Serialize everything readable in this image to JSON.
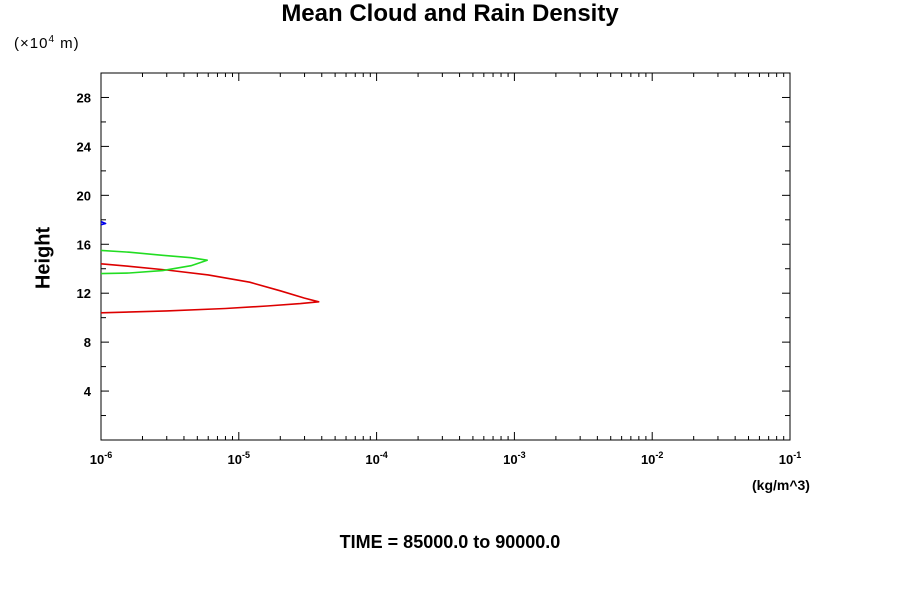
{
  "chart_data": {
    "type": "line",
    "title": "Mean Cloud and Rain Density",
    "ylabel": "Height",
    "y_unit_prefix": "(×10",
    "y_unit_exp": "4",
    "y_unit_suffix": " m)",
    "xlabel": "(kg/m^3)",
    "x_scale": "log",
    "xlim": [
      1e-06,
      0.1
    ],
    "ylim": [
      0,
      30
    ],
    "y_ticks": [
      4,
      8,
      12,
      16,
      20,
      24,
      28
    ],
    "x_ticks": [
      {
        "base": "10",
        "exp": "-6"
      },
      {
        "base": "10",
        "exp": "-5"
      },
      {
        "base": "10",
        "exp": "-4"
      },
      {
        "base": "10",
        "exp": "-3"
      },
      {
        "base": "10",
        "exp": "-2"
      },
      {
        "base": "10",
        "exp": "-1"
      }
    ],
    "grid": false,
    "series": [
      {
        "color": "#dd0000",
        "points": [
          [
            1e-06,
            10.4
          ],
          [
            3e-06,
            10.55
          ],
          [
            8e-06,
            10.75
          ],
          [
            1.6e-05,
            10.95
          ],
          [
            2.8e-05,
            11.15
          ],
          [
            3.8e-05,
            11.3
          ],
          [
            3e-05,
            11.6
          ],
          [
            2e-05,
            12.2
          ],
          [
            1.2e-05,
            12.9
          ],
          [
            6e-06,
            13.5
          ],
          [
            3e-06,
            13.9
          ],
          [
            1.6e-06,
            14.2
          ],
          [
            1e-06,
            14.4
          ]
        ]
      },
      {
        "color": "#22dd22",
        "points": [
          [
            1e-06,
            13.6
          ],
          [
            1.6e-06,
            13.65
          ],
          [
            2.8e-06,
            13.85
          ],
          [
            4.5e-06,
            14.25
          ],
          [
            5.9e-06,
            14.7
          ],
          [
            4.5e-06,
            14.9
          ],
          [
            2.8e-06,
            15.1
          ],
          [
            1.6e-06,
            15.35
          ],
          [
            1e-06,
            15.5
          ]
        ]
      },
      {
        "color": "#0000ee",
        "points": [
          [
            1e-06,
            17.6
          ],
          [
            1.08e-06,
            17.7
          ],
          [
            1e-06,
            17.85
          ]
        ]
      }
    ]
  },
  "footer": {
    "time_label": "TIME = 85000.0 to 90000.0"
  }
}
